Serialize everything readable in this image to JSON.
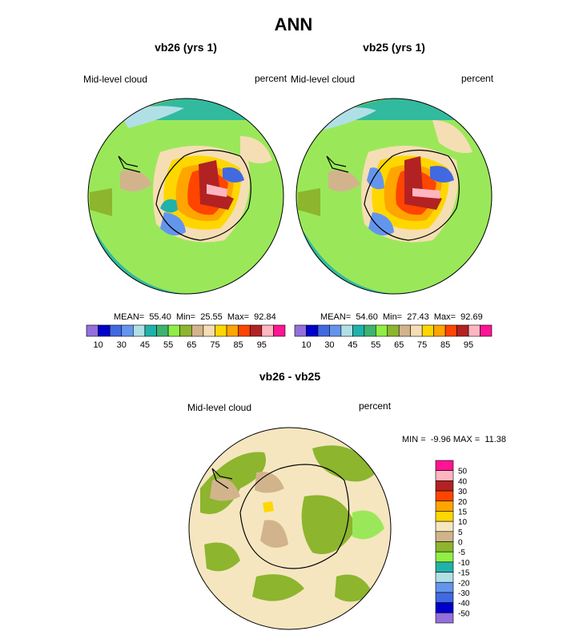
{
  "figure": {
    "title": "ANN",
    "panels": [
      {
        "id": "left",
        "subtitle": "vb26 (yrs 1)",
        "left_label": "Mid-level cloud",
        "right_label": "percent",
        "stats": "MEAN=  55.40  Min=  25.55  Max=  92.84"
      },
      {
        "id": "right",
        "subtitle": "vb25 (yrs 1)",
        "left_label": "Mid-level cloud",
        "right_label": "percent",
        "stats": "MEAN=  54.60  Min=  27.43  Max=  92.69"
      },
      {
        "id": "diff",
        "subtitle": "vb26 - vb25",
        "left_label": "Mid-level cloud",
        "right_label": "percent",
        "stats": "MIN =  -9.96 MAX =  11.38"
      }
    ]
  },
  "colors": {
    "abs_scale": [
      "#9370db",
      "#0000cd",
      "#4169e1",
      "#6495ed",
      "#b0e0e6",
      "#20b2aa",
      "#3cb371",
      "#90ee44",
      "#8db52e",
      "#d2b48c",
      "#f5deb3",
      "#ffd700",
      "#ffa500",
      "#ff4500",
      "#b22222",
      "#ffb6c1",
      "#ff1493"
    ],
    "diff_scale": [
      "#9370db",
      "#0000cd",
      "#4169e1",
      "#6495ed",
      "#b0e0e6",
      "#20b2aa",
      "#90ee44",
      "#8db52e",
      "#d2b48c",
      "#f5e6c0",
      "#ffd700",
      "#ffa500",
      "#ff4500",
      "#b22222",
      "#ffb6c1",
      "#ff1493"
    ]
  },
  "chart_data": [
    {
      "type": "heatmap",
      "title": "vb26 (yrs 1)",
      "variable": "Mid-level cloud",
      "units": "percent",
      "mean": 55.4,
      "min": 25.55,
      "max": 92.84,
      "colorbar_ticks": [
        "10",
        "30",
        "45",
        "55",
        "65",
        "75",
        "85",
        "95"
      ]
    },
    {
      "type": "heatmap",
      "title": "vb25 (yrs 1)",
      "variable": "Mid-level cloud",
      "units": "percent",
      "mean": 54.6,
      "min": 27.43,
      "max": 92.69,
      "colorbar_ticks": [
        "10",
        "30",
        "45",
        "55",
        "65",
        "75",
        "85",
        "95"
      ]
    },
    {
      "type": "heatmap",
      "title": "vb26 - vb25",
      "variable": "Mid-level cloud",
      "units": "percent",
      "min": -9.96,
      "max": 11.38,
      "colorbar_ticks": [
        "50",
        "40",
        "30",
        "20",
        "15",
        "10",
        "5",
        "0",
        "-5",
        "-10",
        "-15",
        "-20",
        "-30",
        "-40",
        "-50"
      ]
    }
  ]
}
